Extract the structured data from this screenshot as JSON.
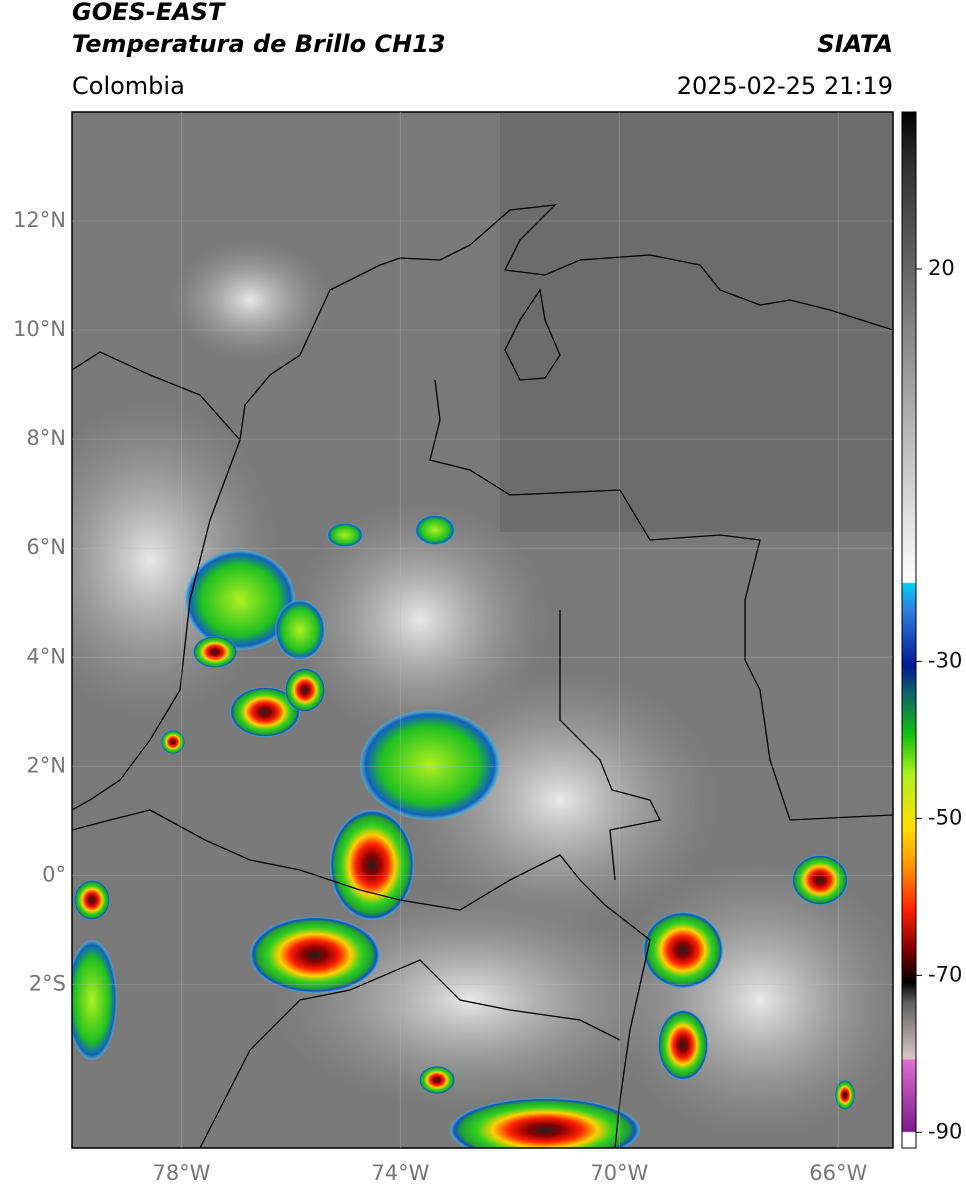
{
  "header": {
    "title": "GOES-EAST",
    "subtitle": "Temperatura de Brillo CH13",
    "region": "Colombia",
    "source": "SIATA",
    "datetime": "2025-02-25 21:19"
  },
  "map": {
    "lonlim": [
      -80,
      -65
    ],
    "latlim": [
      -5,
      14
    ],
    "lat_ticks": [
      {
        "value": 12,
        "label": "12°N"
      },
      {
        "value": 10,
        "label": "10°N"
      },
      {
        "value": 8,
        "label": "8°N"
      },
      {
        "value": 6,
        "label": "6°N"
      },
      {
        "value": 4,
        "label": "4°N"
      },
      {
        "value": 2,
        "label": "2°N"
      },
      {
        "value": 0,
        "label": "0°"
      },
      {
        "value": -2,
        "label": "2°S"
      }
    ],
    "lon_ticks": [
      {
        "value": -78,
        "label": "78°W"
      },
      {
        "value": -74,
        "label": "74°W"
      },
      {
        "value": -70,
        "label": "70°W"
      },
      {
        "value": -66,
        "label": "66°W"
      }
    ]
  },
  "colorbar": {
    "lim": [
      -92,
      40
    ],
    "ticks": [
      20,
      -30,
      -50,
      -70,
      -90
    ]
  }
}
